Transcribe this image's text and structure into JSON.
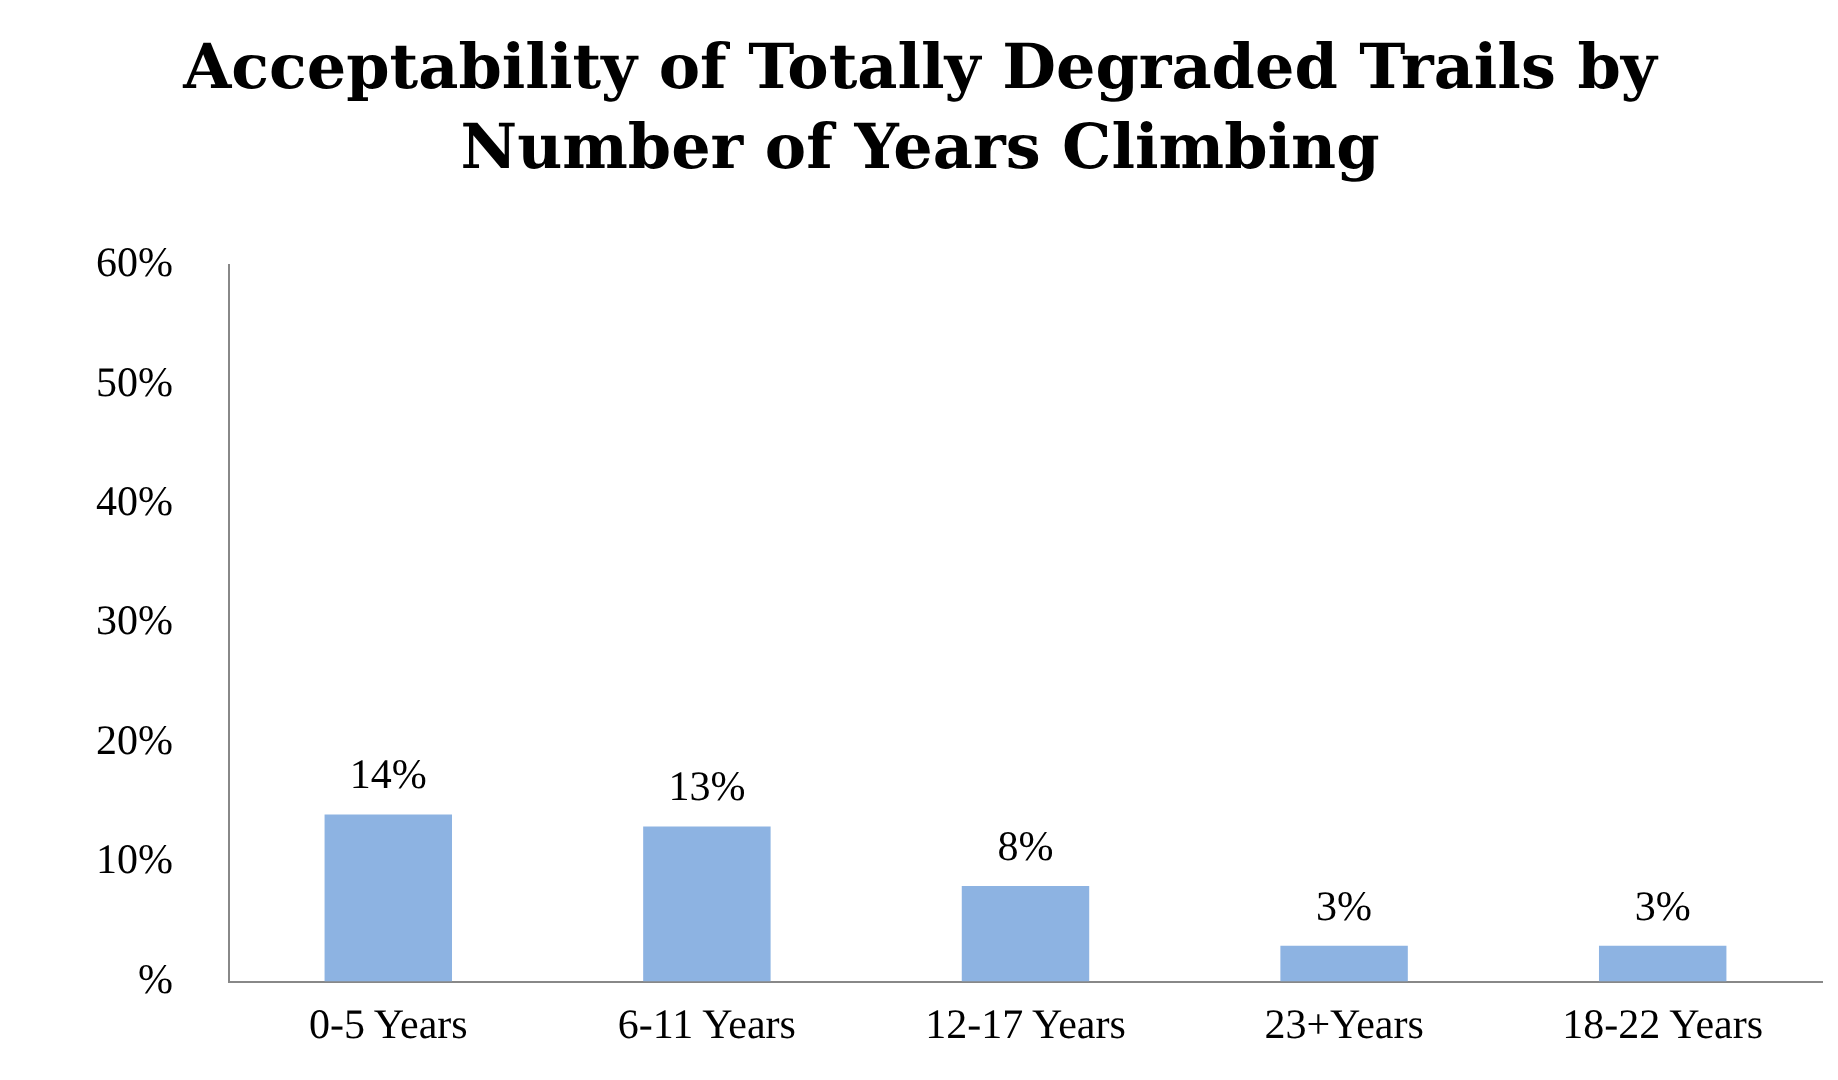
{
  "chart_data": {
    "type": "bar",
    "title": "Acceptability of Totally Degraded Trails by Number of Years Climbing",
    "categories": [
      "0-5 Years",
      "6-11 Years",
      "12-17 Years",
      "23+Years",
      "18-22 Years"
    ],
    "values": [
      14,
      13,
      8,
      3,
      3
    ],
    "value_labels": [
      "14%",
      "13%",
      "8%",
      "3%",
      "3%"
    ],
    "color": "#8db3e2",
    "ylim": [
      0,
      60
    ],
    "yticks": [
      {
        "value": 0,
        "label": "%"
      },
      {
        "value": 10,
        "label": "10%"
      },
      {
        "value": 20,
        "label": "20%"
      },
      {
        "value": 30,
        "label": "30%"
      },
      {
        "value": 40,
        "label": "40%"
      },
      {
        "value": 50,
        "label": "50%"
      },
      {
        "value": 60,
        "label": "60%"
      }
    ],
    "grid": false,
    "legend": false
  }
}
